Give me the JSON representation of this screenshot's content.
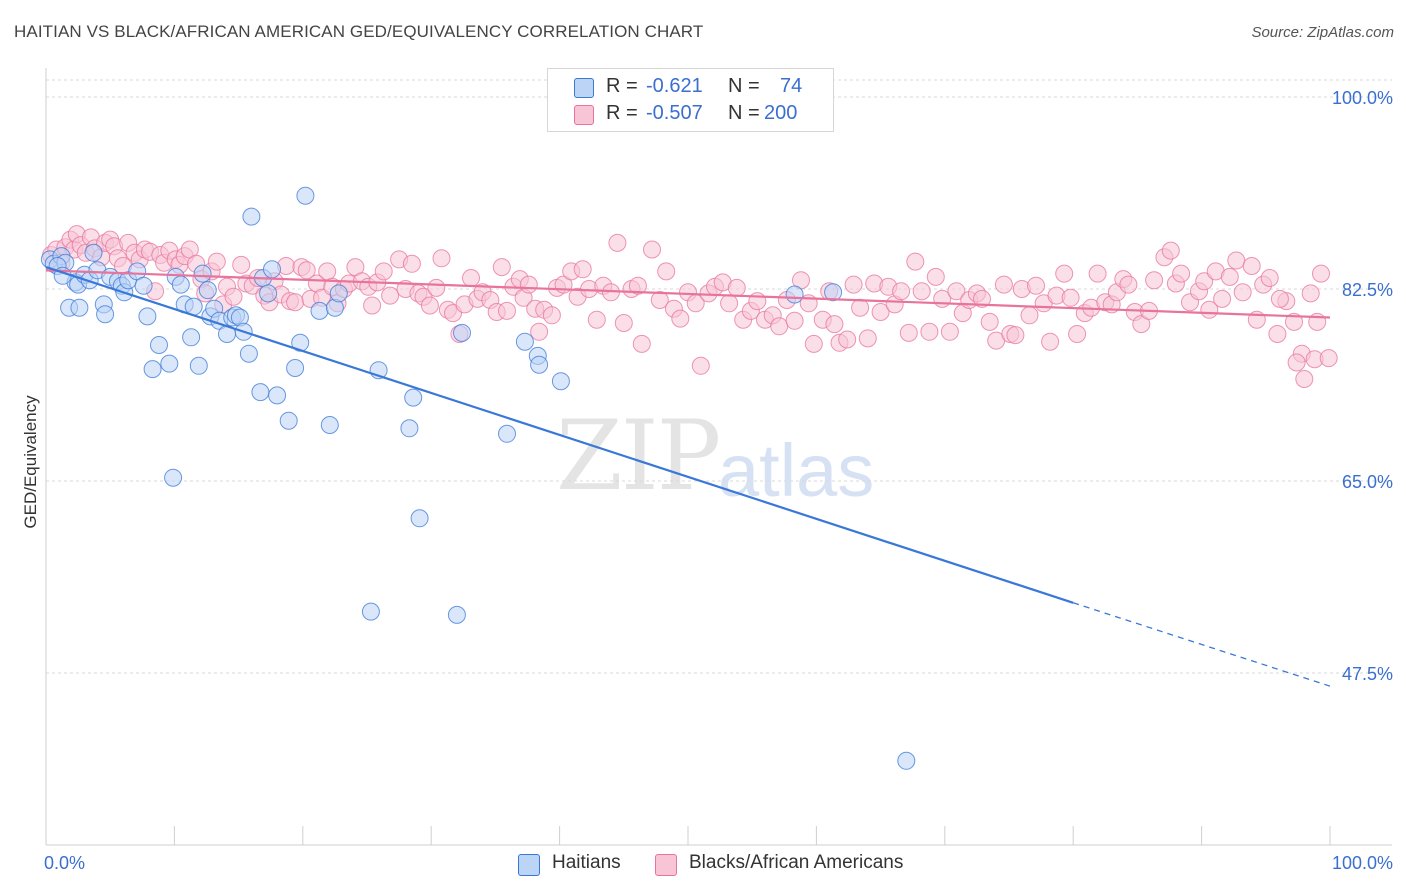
{
  "title": "HAITIAN VS BLACK/AFRICAN AMERICAN GED/EQUIVALENCY CORRELATION CHART",
  "source": "Source: ZipAtlas.com",
  "watermark": {
    "part1": "ZIP",
    "part2": "atlas"
  },
  "colors": {
    "blue": "#3a78d8",
    "blue_fill": "#bcd4f6",
    "pink": "#e8739c",
    "pink_fill": "#f7c5d6",
    "axis_text": "#3a6fcf"
  },
  "legend": {
    "rows": [
      {
        "r_label": "R =",
        "r_value": "-0.621",
        "n_label": "N =",
        "n_value": "74"
      },
      {
        "r_label": "R =",
        "r_value": "-0.507",
        "n_label": "N =",
        "n_value": "200"
      }
    ]
  },
  "bottom_legend": {
    "haitians": "Haitians",
    "blacks": "Blacks/African Americans"
  },
  "chart_data": {
    "type": "scatter",
    "title": "HAITIAN VS BLACK/AFRICAN AMERICAN GED/EQUIVALENCY CORRELATION CHART",
    "xlabel": "",
    "ylabel": "GED/Equivalency",
    "xlim": [
      0,
      100
    ],
    "ylim": [
      30,
      101
    ],
    "x_tick_labels": [
      "0.0%",
      "100.0%"
    ],
    "y_tick_labels": [
      "100.0%",
      "82.5%",
      "65.0%",
      "47.5%"
    ],
    "y_ticks": [
      100.0,
      82.5,
      65.0,
      47.5
    ],
    "grid": true,
    "legend_position": "top-center",
    "series": [
      {
        "name": "Haitians",
        "color": "#3a78d8",
        "R": -0.621,
        "N": 74,
        "trend": {
          "x": [
            0,
            80
          ],
          "y": [
            84.5,
            53.9
          ]
        },
        "trend_dashed": {
          "x": [
            80,
            100
          ],
          "y": [
            53.9,
            46.3
          ]
        },
        "points": [
          [
            0.3,
            85.2
          ],
          [
            0.6,
            84.8
          ],
          [
            1.2,
            85.5
          ],
          [
            1.5,
            84.9
          ],
          [
            1.8,
            80.8
          ],
          [
            2.3,
            83.1
          ],
          [
            2.5,
            82.9
          ],
          [
            2.6,
            80.8
          ],
          [
            3.0,
            83.8
          ],
          [
            3.4,
            83.3
          ],
          [
            3.7,
            85.8
          ],
          [
            4.0,
            84.2
          ],
          [
            4.5,
            81.1
          ],
          [
            4.6,
            80.2
          ],
          [
            5.0,
            83.6
          ],
          [
            5.6,
            83.2
          ],
          [
            5.9,
            82.8
          ],
          [
            6.1,
            82.2
          ],
          [
            6.4,
            83.3
          ],
          [
            7.1,
            84.1
          ],
          [
            7.6,
            82.8
          ],
          [
            7.9,
            80.0
          ],
          [
            8.3,
            75.2
          ],
          [
            8.8,
            77.4
          ],
          [
            9.6,
            75.7
          ],
          [
            9.9,
            65.3
          ],
          [
            10.1,
            83.6
          ],
          [
            10.5,
            82.9
          ],
          [
            10.8,
            81.1
          ],
          [
            11.3,
            78.1
          ],
          [
            11.5,
            80.9
          ],
          [
            11.9,
            75.5
          ],
          [
            12.2,
            83.9
          ],
          [
            12.6,
            82.4
          ],
          [
            12.8,
            80.0
          ],
          [
            13.1,
            80.7
          ],
          [
            13.5,
            79.6
          ],
          [
            14.1,
            78.4
          ],
          [
            14.5,
            79.9
          ],
          [
            14.8,
            80.1
          ],
          [
            15.1,
            79.9
          ],
          [
            15.4,
            78.6
          ],
          [
            15.8,
            76.6
          ],
          [
            16.0,
            89.1
          ],
          [
            16.7,
            73.1
          ],
          [
            16.9,
            83.5
          ],
          [
            17.3,
            82.1
          ],
          [
            17.6,
            84.3
          ],
          [
            18.0,
            72.8
          ],
          [
            18.9,
            70.5
          ],
          [
            19.4,
            75.3
          ],
          [
            19.8,
            77.6
          ],
          [
            20.2,
            91.0
          ],
          [
            21.3,
            80.5
          ],
          [
            22.1,
            70.1
          ],
          [
            22.5,
            80.8
          ],
          [
            22.8,
            82.1
          ],
          [
            25.3,
            53.1
          ],
          [
            25.9,
            75.1
          ],
          [
            28.3,
            69.8
          ],
          [
            28.6,
            72.6
          ],
          [
            29.1,
            61.6
          ],
          [
            32.0,
            52.8
          ],
          [
            32.4,
            78.5
          ],
          [
            35.9,
            69.3
          ],
          [
            37.3,
            77.7
          ],
          [
            38.3,
            76.4
          ],
          [
            38.4,
            75.6
          ],
          [
            40.1,
            74.1
          ],
          [
            58.3,
            82.0
          ],
          [
            61.3,
            82.2
          ],
          [
            67.0,
            39.5
          ],
          [
            0.9,
            84.6
          ],
          [
            1.3,
            83.7
          ]
        ]
      },
      {
        "name": "Blacks/African Americans",
        "color": "#e8739c",
        "R": -0.507,
        "N": 200,
        "trend": {
          "x": [
            0,
            100
          ],
          "y": [
            84.2,
            79.9
          ]
        },
        "points": [
          [
            0.4,
            85.6
          ],
          [
            0.8,
            86.1
          ],
          [
            1.2,
            84.9
          ],
          [
            1.5,
            86.3
          ],
          [
            1.9,
            87.0
          ],
          [
            2.2,
            86.1
          ],
          [
            2.4,
            87.5
          ],
          [
            2.7,
            86.5
          ],
          [
            3.1,
            85.8
          ],
          [
            3.5,
            87.2
          ],
          [
            3.8,
            86.2
          ],
          [
            4.3,
            85.4
          ],
          [
            4.6,
            86.7
          ],
          [
            5.0,
            87.0
          ],
          [
            5.3,
            86.4
          ],
          [
            5.6,
            85.3
          ],
          [
            6.0,
            84.6
          ],
          [
            6.4,
            86.7
          ],
          [
            6.9,
            85.8
          ],
          [
            7.3,
            85.2
          ],
          [
            7.7,
            86.1
          ],
          [
            8.1,
            85.9
          ],
          [
            8.5,
            82.3
          ],
          [
            8.9,
            85.6
          ],
          [
            9.2,
            84.9
          ],
          [
            9.6,
            86.0
          ],
          [
            10.1,
            85.2
          ],
          [
            10.4,
            84.7
          ],
          [
            10.8,
            85.5
          ],
          [
            11.2,
            86.1
          ],
          [
            11.7,
            84.8
          ],
          [
            12.1,
            83.4
          ],
          [
            12.4,
            82.1
          ],
          [
            12.9,
            84.1
          ],
          [
            13.3,
            85.0
          ],
          [
            13.8,
            81.1
          ],
          [
            14.1,
            82.7
          ],
          [
            14.6,
            81.8
          ],
          [
            15.2,
            84.7
          ],
          [
            15.6,
            83.0
          ],
          [
            16.1,
            82.8
          ],
          [
            16.5,
            83.5
          ],
          [
            17.0,
            81.9
          ],
          [
            17.4,
            81.3
          ],
          [
            17.8,
            83.2
          ],
          [
            18.3,
            82.0
          ],
          [
            18.7,
            84.6
          ],
          [
            19.0,
            81.4
          ],
          [
            19.4,
            81.3
          ],
          [
            19.9,
            84.5
          ],
          [
            20.3,
            84.2
          ],
          [
            20.6,
            81.6
          ],
          [
            21.1,
            83.0
          ],
          [
            21.5,
            81.7
          ],
          [
            21.9,
            84.1
          ],
          [
            22.3,
            82.7
          ],
          [
            22.7,
            81.2
          ],
          [
            23.2,
            82.5
          ],
          [
            23.6,
            83.0
          ],
          [
            24.1,
            84.5
          ],
          [
            24.6,
            83.2
          ],
          [
            25.1,
            82.7
          ],
          [
            25.4,
            81.0
          ],
          [
            25.8,
            83.1
          ],
          [
            26.3,
            84.1
          ],
          [
            26.8,
            81.9
          ],
          [
            27.5,
            85.2
          ],
          [
            28.0,
            82.5
          ],
          [
            28.5,
            84.8
          ],
          [
            29.0,
            82.1
          ],
          [
            29.4,
            81.8
          ],
          [
            29.9,
            81.0
          ],
          [
            30.4,
            82.6
          ],
          [
            30.8,
            85.3
          ],
          [
            31.3,
            80.6
          ],
          [
            31.7,
            80.3
          ],
          [
            32.2,
            78.4
          ],
          [
            32.6,
            81.1
          ],
          [
            33.1,
            83.5
          ],
          [
            33.6,
            81.6
          ],
          [
            34.0,
            82.2
          ],
          [
            34.6,
            81.5
          ],
          [
            35.1,
            80.4
          ],
          [
            35.5,
            84.5
          ],
          [
            35.9,
            80.5
          ],
          [
            36.4,
            82.7
          ],
          [
            36.9,
            83.4
          ],
          [
            37.2,
            81.7
          ],
          [
            37.6,
            82.9
          ],
          [
            38.1,
            80.7
          ],
          [
            38.4,
            78.6
          ],
          [
            38.8,
            80.6
          ],
          [
            39.4,
            80.1
          ],
          [
            39.8,
            82.6
          ],
          [
            40.3,
            82.9
          ],
          [
            40.9,
            84.1
          ],
          [
            41.4,
            81.8
          ],
          [
            41.8,
            84.3
          ],
          [
            42.3,
            82.5
          ],
          [
            42.9,
            79.7
          ],
          [
            43.4,
            82.8
          ],
          [
            44.0,
            82.2
          ],
          [
            44.5,
            86.7
          ],
          [
            45.0,
            79.4
          ],
          [
            45.6,
            82.5
          ],
          [
            46.1,
            82.8
          ],
          [
            46.4,
            77.5
          ],
          [
            47.2,
            86.1
          ],
          [
            47.8,
            81.5
          ],
          [
            48.3,
            84.1
          ],
          [
            48.9,
            80.7
          ],
          [
            49.4,
            79.8
          ],
          [
            50.0,
            82.2
          ],
          [
            50.6,
            81.2
          ],
          [
            51.0,
            75.5
          ],
          [
            51.6,
            82.1
          ],
          [
            52.1,
            82.7
          ],
          [
            52.7,
            83.1
          ],
          [
            53.2,
            81.2
          ],
          [
            53.8,
            82.6
          ],
          [
            54.3,
            79.7
          ],
          [
            54.9,
            80.5
          ],
          [
            55.4,
            81.4
          ],
          [
            56.0,
            79.7
          ],
          [
            56.6,
            80.1
          ],
          [
            57.1,
            79.1
          ],
          [
            57.7,
            81.5
          ],
          [
            58.3,
            79.6
          ],
          [
            58.8,
            83.3
          ],
          [
            59.4,
            81.2
          ],
          [
            59.8,
            77.5
          ],
          [
            60.5,
            79.7
          ],
          [
            61.0,
            82.3
          ],
          [
            61.4,
            79.3
          ],
          [
            61.8,
            77.6
          ],
          [
            62.4,
            77.9
          ],
          [
            62.9,
            82.9
          ],
          [
            63.4,
            80.8
          ],
          [
            64.0,
            78.0
          ],
          [
            64.5,
            83.0
          ],
          [
            65.0,
            80.4
          ],
          [
            65.6,
            82.7
          ],
          [
            66.1,
            81.1
          ],
          [
            66.6,
            82.3
          ],
          [
            67.2,
            78.5
          ],
          [
            67.7,
            85.0
          ],
          [
            68.2,
            82.3
          ],
          [
            68.8,
            78.6
          ],
          [
            69.3,
            83.6
          ],
          [
            69.8,
            81.6
          ],
          [
            70.4,
            78.6
          ],
          [
            70.9,
            82.3
          ],
          [
            71.4,
            80.3
          ],
          [
            71.9,
            81.5
          ],
          [
            72.5,
            82.1
          ],
          [
            72.9,
            81.6
          ],
          [
            73.5,
            79.5
          ],
          [
            74.0,
            77.8
          ],
          [
            74.6,
            82.9
          ],
          [
            75.1,
            78.4
          ],
          [
            75.5,
            78.3
          ],
          [
            76.0,
            82.5
          ],
          [
            76.6,
            80.1
          ],
          [
            77.1,
            82.8
          ],
          [
            77.7,
            81.2
          ],
          [
            78.2,
            77.7
          ],
          [
            78.7,
            81.9
          ],
          [
            79.3,
            83.9
          ],
          [
            79.8,
            81.7
          ],
          [
            80.3,
            78.4
          ],
          [
            80.9,
            80.3
          ],
          [
            81.4,
            80.8
          ],
          [
            81.9,
            83.9
          ],
          [
            82.5,
            81.3
          ],
          [
            83.0,
            81.1
          ],
          [
            83.4,
            82.2
          ],
          [
            83.9,
            83.4
          ],
          [
            84.3,
            82.9
          ],
          [
            84.8,
            80.4
          ],
          [
            85.3,
            79.3
          ],
          [
            85.9,
            80.5
          ],
          [
            86.3,
            83.3
          ],
          [
            87.1,
            85.4
          ],
          [
            87.6,
            86.0
          ],
          [
            88.0,
            83.0
          ],
          [
            88.4,
            83.9
          ],
          [
            89.1,
            81.3
          ],
          [
            89.8,
            82.3
          ],
          [
            90.2,
            83.2
          ],
          [
            90.6,
            80.6
          ],
          [
            91.1,
            84.1
          ],
          [
            91.6,
            81.6
          ],
          [
            92.2,
            83.6
          ],
          [
            92.7,
            85.1
          ],
          [
            93.2,
            82.2
          ],
          [
            93.9,
            84.6
          ],
          [
            94.3,
            79.7
          ],
          [
            94.8,
            82.9
          ],
          [
            95.3,
            83.5
          ],
          [
            95.9,
            78.4
          ],
          [
            96.6,
            81.4
          ],
          [
            97.2,
            79.5
          ],
          [
            97.8,
            76.6
          ],
          [
            98.5,
            82.1
          ],
          [
            99.0,
            79.5
          ],
          [
            98.0,
            74.3
          ],
          [
            98.8,
            76.1
          ],
          [
            99.3,
            83.9
          ],
          [
            99.9,
            76.2
          ],
          [
            97.4,
            75.8
          ],
          [
            96.1,
            81.6
          ]
        ]
      }
    ]
  }
}
